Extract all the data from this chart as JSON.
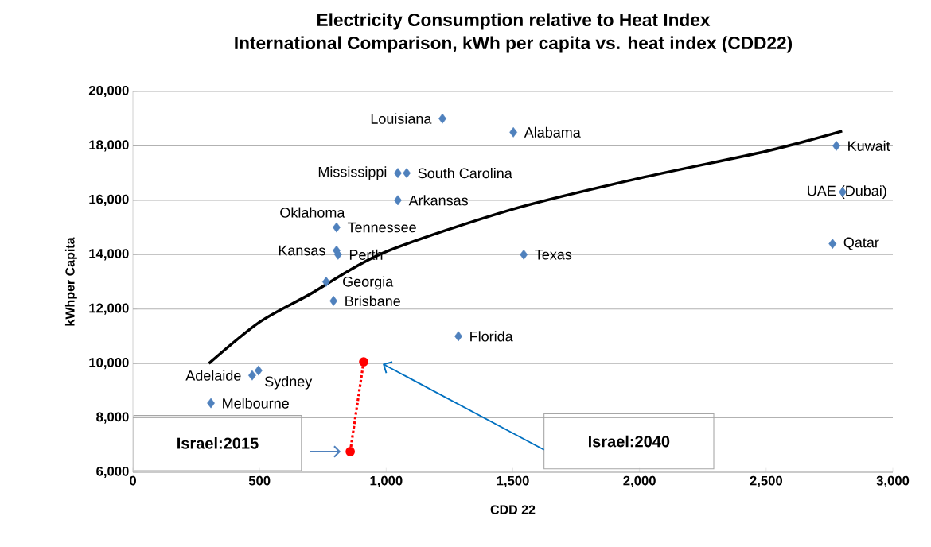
{
  "chart_data": {
    "type": "scatter",
    "title": "Electricity Consumption relative to Heat Index",
    "subtitle": "International Comparison, kWh per capita vs. heat index (CDD22)",
    "xlabel": "CDD 22",
    "ylabel": "kWhper Capita",
    "series": [
      {
        "color": "#4f81bd",
        "marker": "diamond",
        "x": [
          1222,
          1502,
          2777,
          1046,
          1081,
          2802,
          1046,
          804,
          804,
          810,
          2762,
          1543,
          763,
          792,
          1285,
          471,
          496,
          308
        ],
        "values": [
          19000,
          18500,
          18000,
          17000,
          17000,
          16300,
          16000,
          15000,
          14150,
          14000,
          14400,
          14000,
          13000,
          12300,
          11000,
          9560,
          9740,
          8540
        ]
      },
      {
        "type": "line",
        "color": "#000000",
        "marker": "none",
        "x": [
          300,
          500,
          700,
          985,
          1500,
          2000,
          2500,
          2800
        ],
        "values": [
          10000,
          11520,
          12550,
          14050,
          15670,
          16810,
          17800,
          18540
        ]
      },
      {
        "type": "line",
        "color": "#ff0000",
        "marker": "circle",
        "line_style": "dotted",
        "x": [
          858,
          911
        ],
        "values": [
          6760,
          10060
        ]
      }
    ],
    "annotations": [
      {
        "text": "Louisiana",
        "x": 1222,
        "y": 19000
      },
      {
        "text": "Alabama",
        "x": 1502,
        "y": 18500
      },
      {
        "text": "Kuwait",
        "x": 2777,
        "y": 18000
      },
      {
        "text": "Mississippi",
        "x": 1046,
        "y": 17000
      },
      {
        "text": "South Carolina",
        "x": 1081,
        "y": 17000
      },
      {
        "text": "UAE (Dubai)",
        "x": 2802,
        "y": 16300
      },
      {
        "text": "Arkansas",
        "x": 1046,
        "y": 16000
      },
      {
        "text": "Oklahoma",
        "x": 800,
        "y": 15000
      },
      {
        "text": "Tennessee",
        "x": 804,
        "y": 15000
      },
      {
        "text": "Kansas",
        "x": 804,
        "y": 14150
      },
      {
        "text": "Perth",
        "x": 810,
        "y": 14000
      },
      {
        "text": "Qatar",
        "x": 2762,
        "y": 14400
      },
      {
        "text": "Texas",
        "x": 1543,
        "y": 14000
      },
      {
        "text": "Georgia",
        "x": 763,
        "y": 13000
      },
      {
        "text": "Brisbane",
        "x": 792,
        "y": 12300
      },
      {
        "text": "Florida",
        "x": 1285,
        "y": 11000
      },
      {
        "text": "Adelaide",
        "x": 471,
        "y": 9560
      },
      {
        "text": "Sydney",
        "x": 496,
        "y": 9740
      },
      {
        "text": "Melbourne",
        "x": 308,
        "y": 8540
      },
      "Israel:2015",
      "Israel:2040"
    ],
    "xlim": [
      0,
      3000
    ],
    "ylim": [
      6000,
      20000
    ],
    "xticks": [
      {
        "value": 0,
        "label": "0"
      },
      {
        "value": 500,
        "label": "500"
      },
      {
        "value": 1000,
        "label": "1,000"
      },
      {
        "value": 1500,
        "label": "1,500"
      },
      {
        "value": 2000,
        "label": "2,000"
      },
      {
        "value": 2500,
        "label": "2,500"
      },
      {
        "value": 3000,
        "label": "3,000"
      }
    ],
    "yticks": [
      {
        "value": 6000,
        "label": "6,000"
      },
      {
        "value": 8000,
        "label": "8,000"
      },
      {
        "value": 10000,
        "label": "10,000"
      },
      {
        "value": 12000,
        "label": "12,000"
      },
      {
        "value": 14000,
        "label": "14,000"
      },
      {
        "value": 16000,
        "label": "16,000"
      },
      {
        "value": 18000,
        "label": "18,000"
      },
      {
        "value": 20000,
        "label": "20,000"
      }
    ],
    "grid": "y"
  }
}
